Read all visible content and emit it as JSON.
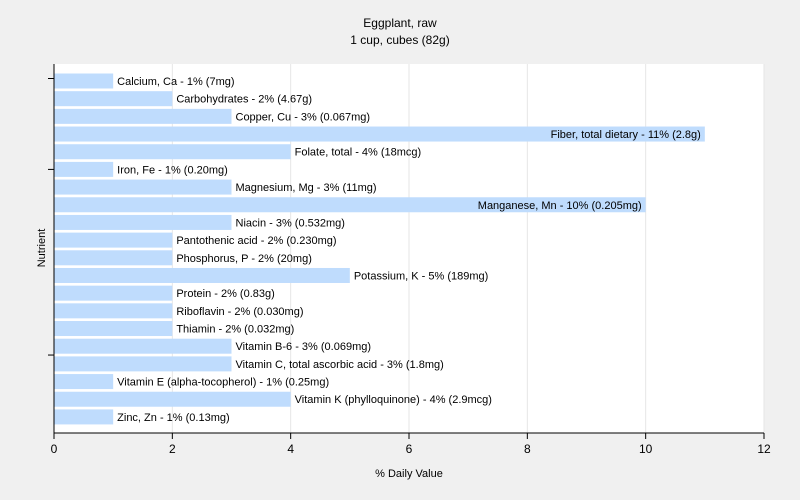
{
  "chart_data": {
    "type": "bar",
    "orientation": "horizontal",
    "title": "Eggplant, raw",
    "subtitle": "1 cup, cubes (82g)",
    "xlabel": "% Daily Value",
    "ylabel": "Nutrient",
    "xlim": [
      0,
      12
    ],
    "xticks": [
      0,
      2,
      4,
      6,
      8,
      10,
      12
    ],
    "grid": true,
    "bar_color": "#bfdcfd",
    "categories": [
      "Calcium, Ca",
      "Carbohydrates",
      "Copper, Cu",
      "Fiber, total dietary",
      "Folate, total",
      "Iron, Fe",
      "Magnesium, Mg",
      "Manganese, Mn",
      "Niacin",
      "Pantothenic acid",
      "Phosphorus, P",
      "Potassium, K",
      "Protein",
      "Riboflavin",
      "Thiamin",
      "Vitamin B-6",
      "Vitamin C, total ascorbic acid",
      "Vitamin E (alpha-tocopherol)",
      "Vitamin K (phylloquinone)",
      "Zinc, Zn"
    ],
    "values": [
      1,
      2,
      3,
      11,
      4,
      1,
      3,
      10,
      3,
      2,
      2,
      5,
      2,
      2,
      2,
      3,
      3,
      1,
      4,
      1
    ],
    "labels": [
      "Calcium, Ca - 1% (7mg)",
      "Carbohydrates - 2% (4.67g)",
      "Copper, Cu - 3% (0.067mg)",
      "Fiber, total dietary - 11% (2.8g)",
      "Folate, total - 4% (18mcg)",
      "Iron, Fe - 1% (0.20mg)",
      "Magnesium, Mg - 3% (11mg)",
      "Manganese, Mn - 10% (0.205mg)",
      "Niacin - 3% (0.532mg)",
      "Pantothenic acid - 2% (0.230mg)",
      "Phosphorus, P - 2% (20mg)",
      "Potassium, K - 5% (189mg)",
      "Protein - 2% (0.83g)",
      "Riboflavin - 2% (0.030mg)",
      "Thiamin - 2% (0.032mg)",
      "Vitamin B-6 - 3% (0.069mg)",
      "Vitamin C, total ascorbic acid - 3% (1.8mg)",
      "Vitamin E (alpha-tocopherol) - 1% (0.25mg)",
      "Vitamin K (phylloquinone) - 4% (2.9mcg)",
      "Zinc, Zn - 1% (0.13mg)"
    ]
  }
}
